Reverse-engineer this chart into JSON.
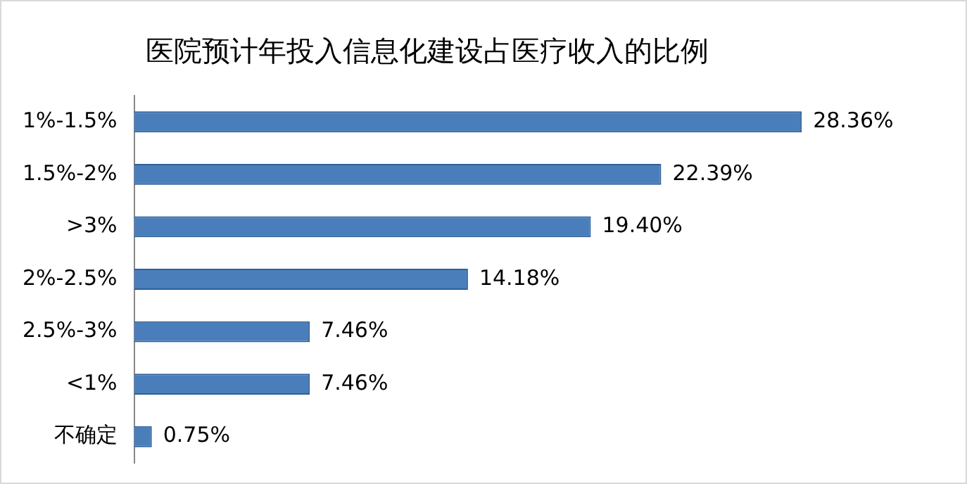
{
  "chart_data": {
    "type": "bar",
    "orientation": "horizontal",
    "title": "医院预计年投入信息化建设占医疗收入的比例",
    "categories": [
      "1%-1.5%",
      "1.5%-2%",
      ">3%",
      "2%-2.5%",
      "2.5%-3%",
      "<1%",
      "不确定"
    ],
    "values": [
      28.36,
      22.39,
      19.4,
      14.18,
      7.46,
      7.46,
      0.75
    ],
    "value_labels": [
      "28.36%",
      "22.39%",
      "19.40%",
      "14.18%",
      "7.46%",
      "7.46%",
      "0.75%"
    ],
    "color": "#4a7ebb",
    "grid": false,
    "legend": false,
    "tick_labels": "y"
  }
}
